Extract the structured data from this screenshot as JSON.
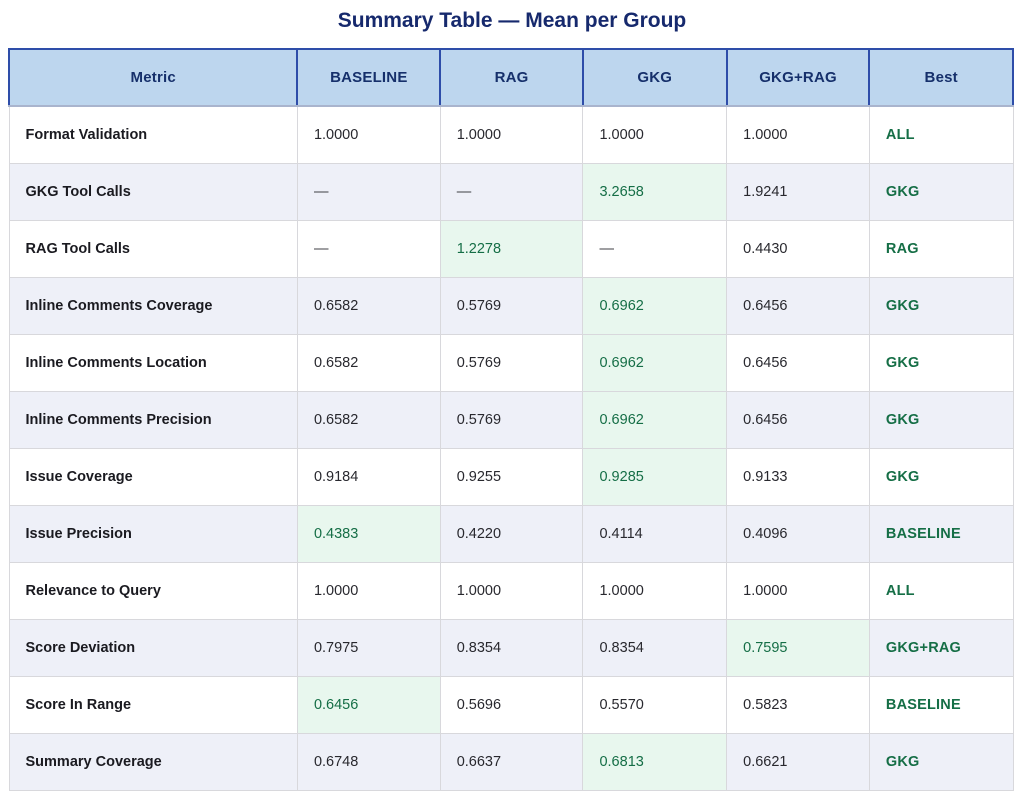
{
  "title": "Summary Table — Mean per Group",
  "chart_data": {
    "type": "table",
    "title": "Summary Table — Mean per Group",
    "columns": [
      "Metric",
      "BASELINE",
      "RAG",
      "GKG",
      "GKG+RAG",
      "Best"
    ],
    "group_columns": [
      "BASELINE",
      "RAG",
      "GKG",
      "GKG+RAG"
    ],
    "rows": [
      {
        "metric": "Format Validation",
        "values": [
          "1.0000",
          "1.0000",
          "1.0000",
          "1.0000"
        ],
        "best": "ALL",
        "highlight_col": null
      },
      {
        "metric": "GKG Tool Calls",
        "values": [
          "—",
          "—",
          "3.2658",
          "1.9241"
        ],
        "best": "GKG",
        "highlight_col": 2
      },
      {
        "metric": "RAG Tool Calls",
        "values": [
          "—",
          "1.2278",
          "—",
          "0.4430"
        ],
        "best": "RAG",
        "highlight_col": 1
      },
      {
        "metric": "Inline Comments Coverage",
        "values": [
          "0.6582",
          "0.5769",
          "0.6962",
          "0.6456"
        ],
        "best": "GKG",
        "highlight_col": 2
      },
      {
        "metric": "Inline Comments Location",
        "values": [
          "0.6582",
          "0.5769",
          "0.6962",
          "0.6456"
        ],
        "best": "GKG",
        "highlight_col": 2
      },
      {
        "metric": "Inline Comments Precision",
        "values": [
          "0.6582",
          "0.5769",
          "0.6962",
          "0.6456"
        ],
        "best": "GKG",
        "highlight_col": 2
      },
      {
        "metric": "Issue Coverage",
        "values": [
          "0.9184",
          "0.9255",
          "0.9285",
          "0.9133"
        ],
        "best": "GKG",
        "highlight_col": 2
      },
      {
        "metric": "Issue Precision",
        "values": [
          "0.4383",
          "0.4220",
          "0.4114",
          "0.4096"
        ],
        "best": "BASELINE",
        "highlight_col": 0
      },
      {
        "metric": "Relevance to Query",
        "values": [
          "1.0000",
          "1.0000",
          "1.0000",
          "1.0000"
        ],
        "best": "ALL",
        "highlight_col": null
      },
      {
        "metric": "Score Deviation",
        "values": [
          "0.7975",
          "0.8354",
          "0.8354",
          "0.7595"
        ],
        "best": "GKG+RAG",
        "highlight_col": 3
      },
      {
        "metric": "Score In Range",
        "values": [
          "0.6456",
          "0.5696",
          "0.5570",
          "0.5823"
        ],
        "best": "BASELINE",
        "highlight_col": 0
      },
      {
        "metric": "Summary Coverage",
        "values": [
          "0.6748",
          "0.6637",
          "0.6813",
          "0.6621"
        ],
        "best": "GKG",
        "highlight_col": 2
      }
    ]
  },
  "colors": {
    "c-title": "#16296d",
    "c-header-bg": "#bdd6ee",
    "c-header-text": "#16306b",
    "c-header-border": "#2e4da9",
    "c-header-bottom": "#a9b4cd",
    "c-row-alt": "#eef0f8",
    "c-row": "#ffffff",
    "c-border": "#d8d8dc",
    "c-text": "#28282e",
    "c-metric": "#1a1a20",
    "c-green": "#156e46",
    "c-green-bg": "#e8f7ee",
    "c-dash": "#3f3f45"
  }
}
